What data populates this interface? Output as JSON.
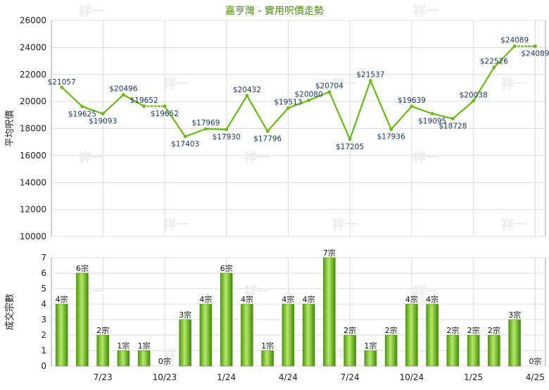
{
  "chart_data": [
    {
      "type": "line",
      "title": "嘉亨灣 - 實用呎價走勢",
      "ylabel": "平均呎價",
      "xlabel": "",
      "ylim": [
        10000,
        26000
      ],
      "y_ticks": [
        10000,
        12000,
        14000,
        16000,
        18000,
        20000,
        22000,
        24000,
        26000
      ],
      "grid": true,
      "series": [
        {
          "values": [
            21057,
            19625,
            19093,
            20496,
            19652,
            19652,
            17403,
            17969,
            17930,
            20432,
            17796,
            19513,
            20080,
            20704,
            17205,
            21537,
            17936,
            19639,
            19095,
            18728,
            20038,
            22526,
            24089,
            24089
          ],
          "labels": [
            "$21057",
            "$19625",
            "$19093",
            "$20496",
            "$19652",
            "$19652",
            "$17403",
            "$17969",
            "$17930",
            "$20432",
            "$17796",
            "$19513",
            "$20080",
            "$20704",
            "$17205",
            "$21537",
            "$17936",
            "$19639",
            "$19095",
            "$18728",
            "$20038",
            "$22526",
            "$24089",
            "$24089"
          ],
          "dotted_segments_end_at": [
            5,
            23
          ]
        }
      ],
      "color": "#66bb11"
    },
    {
      "type": "bar",
      "ylabel": "成交宗數",
      "xlabel": "",
      "ylim": [
        0,
        7
      ],
      "y_ticks": [
        0,
        1,
        2,
        3,
        4,
        5,
        6,
        7
      ],
      "grid": true,
      "x_tick_labels": [
        {
          "index": 2,
          "label": "7/23"
        },
        {
          "index": 5,
          "label": "10/23"
        },
        {
          "index": 8,
          "label": "1/24"
        },
        {
          "index": 11,
          "label": "4/24"
        },
        {
          "index": 14,
          "label": "7/24"
        },
        {
          "index": 17,
          "label": "10/24"
        },
        {
          "index": 20,
          "label": "1/25"
        },
        {
          "index": 23,
          "label": "4/25"
        }
      ],
      "values": [
        4,
        6,
        2,
        1,
        1,
        0,
        3,
        4,
        6,
        4,
        1,
        4,
        4,
        7,
        2,
        1,
        2,
        4,
        4,
        2,
        2,
        2,
        3,
        0
      ],
      "labels": [
        "4宗",
        "6宗",
        "2宗",
        "1宗",
        "1宗",
        "0宗",
        "3宗",
        "4宗",
        "6宗",
        "4宗",
        "1宗",
        "4宗",
        "4宗",
        "7宗",
        "2宗",
        "1宗",
        "2宗",
        "4宗",
        "4宗",
        "2宗",
        "2宗",
        "2宗",
        "3宗",
        "0宗"
      ],
      "color": "#66bb11"
    }
  ],
  "watermark": "祥一"
}
